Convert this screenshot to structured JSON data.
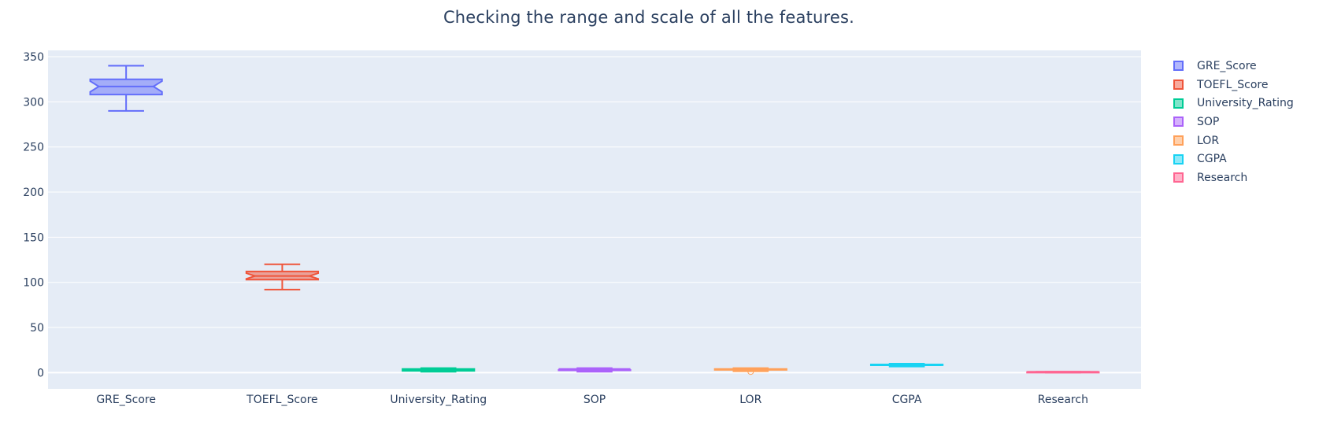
{
  "chart_data": {
    "type": "box",
    "title": "Checking the range and scale of all the features.",
    "xlabel": "",
    "ylabel": "",
    "ylim": [
      -18,
      357
    ],
    "y_ticks": [
      0,
      50,
      100,
      150,
      200,
      250,
      300,
      350
    ],
    "grid": true,
    "legend_placement": "right",
    "categories": [
      "GRE_Score",
      "TOEFL_Score",
      "University_Rating",
      "SOP",
      "LOR",
      "CGPA",
      "Research"
    ],
    "series": [
      {
        "name": "GRE_Score",
        "color": "#636efa",
        "fill": "rgba(99,110,250,0.5)",
        "notched": true,
        "min": 290,
        "q1": 308,
        "median": 317,
        "q3": 325,
        "max": 340,
        "outliers": []
      },
      {
        "name": "TOEFL_Score",
        "color": "#ef553b",
        "fill": "rgba(239,85,59,0.5)",
        "notched": true,
        "min": 92,
        "q1": 103,
        "median": 107,
        "q3": 112,
        "max": 120,
        "outliers": []
      },
      {
        "name": "University_Rating",
        "color": "#00cc96",
        "fill": "rgba(0,204,150,0.5)",
        "notched": true,
        "min": 1,
        "q1": 2,
        "median": 3,
        "q3": 4,
        "max": 5,
        "outliers": []
      },
      {
        "name": "SOP",
        "color": "#ab63fa",
        "fill": "rgba(171,99,250,0.5)",
        "notched": true,
        "min": 1,
        "q1": 2.5,
        "median": 3.5,
        "q3": 4,
        "max": 5,
        "outliers": []
      },
      {
        "name": "LOR",
        "color": "#ffa15a",
        "fill": "rgba(255,161,90,0.5)",
        "notched": true,
        "min": 1.5,
        "q1": 3,
        "median": 3.5,
        "q3": 4,
        "max": 5,
        "outliers": [
          1
        ]
      },
      {
        "name": "CGPA",
        "color": "#19d3f3",
        "fill": "rgba(25,211,243,0.5)",
        "notched": true,
        "min": 6.8,
        "q1": 8.13,
        "median": 8.56,
        "q3": 9.04,
        "max": 9.92,
        "outliers": []
      },
      {
        "name": "Research",
        "color": "#ff6692",
        "fill": "rgba(255,102,146,0.5)",
        "notched": true,
        "min": 0,
        "q1": 0,
        "median": 1,
        "q3": 1,
        "max": 1,
        "outliers": []
      }
    ]
  }
}
